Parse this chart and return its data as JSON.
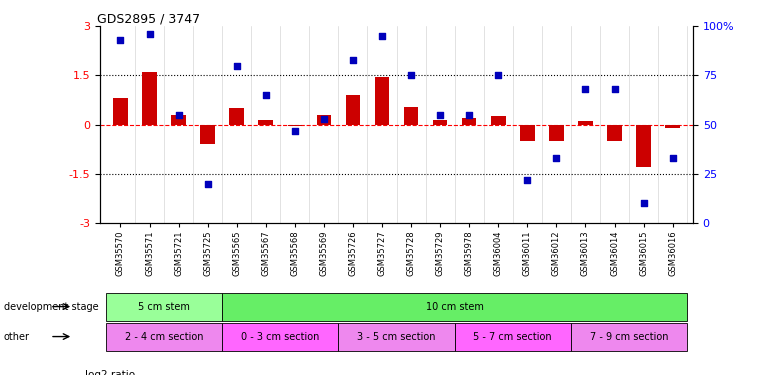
{
  "title": "GDS2895 / 3747",
  "samples": [
    "GSM35570",
    "GSM35571",
    "GSM35721",
    "GSM35725",
    "GSM35565",
    "GSM35567",
    "GSM35568",
    "GSM35569",
    "GSM35726",
    "GSM35727",
    "GSM35728",
    "GSM35729",
    "GSM35978",
    "GSM36004",
    "GSM36011",
    "GSM36012",
    "GSM36013",
    "GSM36014",
    "GSM36015",
    "GSM36016"
  ],
  "log2_ratio": [
    0.8,
    1.6,
    0.3,
    -0.6,
    0.5,
    0.15,
    -0.05,
    0.3,
    0.9,
    1.45,
    0.55,
    0.15,
    0.2,
    0.25,
    -0.5,
    -0.5,
    0.1,
    -0.5,
    -1.3,
    -0.1
  ],
  "percentile": [
    93,
    96,
    55,
    20,
    80,
    65,
    47,
    53,
    83,
    95,
    75,
    55,
    55,
    75,
    22,
    33,
    68,
    68,
    10,
    33
  ],
  "ylim_left": [
    -3,
    3
  ],
  "ylim_right": [
    0,
    100
  ],
  "yticks_left": [
    -3,
    -1.5,
    0,
    1.5,
    3
  ],
  "yticks_right": [
    0,
    25,
    50,
    75,
    100
  ],
  "dev_stage_groups": [
    {
      "label": "5 cm stem",
      "start": 0,
      "end": 3,
      "color": "#99FF99"
    },
    {
      "label": "10 cm stem",
      "start": 4,
      "end": 19,
      "color": "#66EE66"
    }
  ],
  "other_groups": [
    {
      "label": "2 - 4 cm section",
      "start": 0,
      "end": 3,
      "color": "#EE88EE"
    },
    {
      "label": "0 - 3 cm section",
      "start": 4,
      "end": 7,
      "color": "#FF66FF"
    },
    {
      "label": "3 - 5 cm section",
      "start": 8,
      "end": 11,
      "color": "#EE88EE"
    },
    {
      "label": "5 - 7 cm section",
      "start": 12,
      "end": 15,
      "color": "#FF66FF"
    },
    {
      "label": "7 - 9 cm section",
      "start": 16,
      "end": 19,
      "color": "#EE88EE"
    }
  ],
  "bar_color": "#CC0000",
  "dot_color": "#0000BB",
  "zero_line_color": "#FF0000",
  "dotted_line_color": "#000000",
  "bg_color": "#FFFFFF"
}
